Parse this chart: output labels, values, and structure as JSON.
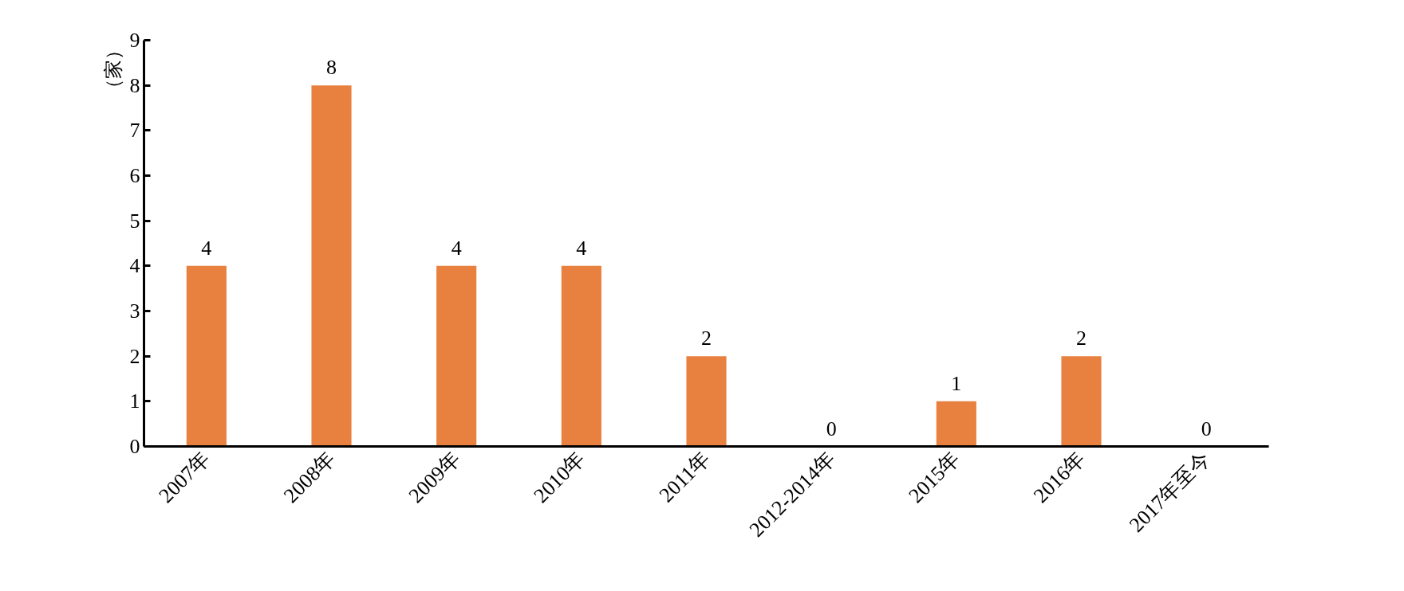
{
  "chart_data": {
    "type": "bar",
    "ylabel": "（家）",
    "categories": [
      "2007年",
      "2008年",
      "2009年",
      "2010年",
      "2011年",
      "2012-2014年",
      "2015年",
      "2016年",
      "2017年至今"
    ],
    "values": [
      4,
      8,
      4,
      4,
      2,
      0,
      1,
      2,
      0
    ],
    "color": "#e8803f",
    "ylim": [
      0,
      9
    ],
    "yticks": [
      0,
      1,
      2,
      3,
      4,
      5,
      6,
      7,
      8,
      9
    ],
    "grid": false,
    "data_labels": true
  }
}
